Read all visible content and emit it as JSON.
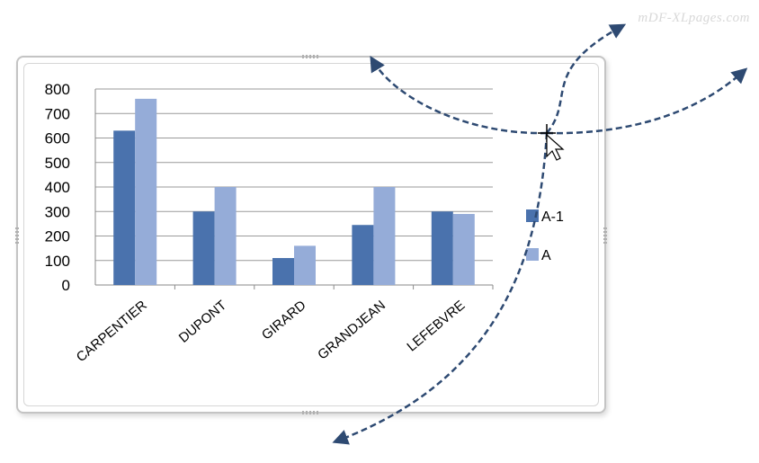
{
  "watermark": "mDF-XLpages.com",
  "colors": {
    "series1": "#4a72ad",
    "series2": "#95acd8",
    "arrow": "#2e4a72",
    "grid": "#9a9a9a"
  },
  "chart_data": {
    "type": "bar",
    "categories": [
      "CARPENTIER",
      "DUPONT",
      "GIRARD",
      "GRANDJEAN",
      "LEFEBVRE"
    ],
    "series": [
      {
        "name": "A-1",
        "values": [
          630,
          300,
          110,
          245,
          300
        ]
      },
      {
        "name": "A",
        "values": [
          760,
          400,
          160,
          400,
          290
        ]
      }
    ],
    "ylim": [
      0,
      800
    ],
    "yticks": [
      0,
      100,
      200,
      300,
      400,
      500,
      600,
      700,
      800
    ],
    "grid": true,
    "legend": "right"
  }
}
